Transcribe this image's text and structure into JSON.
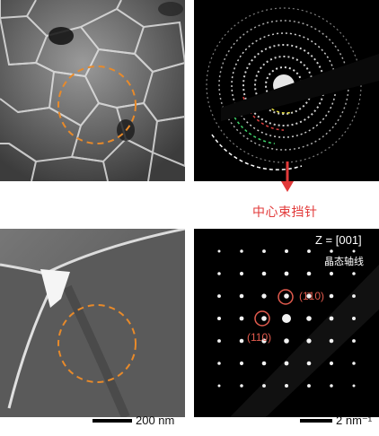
{
  "annotations": {
    "beam_stop_label": "中心束挡针",
    "zone_axis": "Z = [001]",
    "zone_axis_cn": "晶态轴线",
    "miller_index_1": "(1̄10)",
    "miller_index_2": "(110)"
  },
  "scale_bars": {
    "left": "200 nm",
    "right": "2 nm⁻¹"
  },
  "colors": {
    "selection_circle": "#e88a2a",
    "arrow": "#e23a3a",
    "highlight_circle": "#e35b4e",
    "panel_background": "#000000"
  }
}
